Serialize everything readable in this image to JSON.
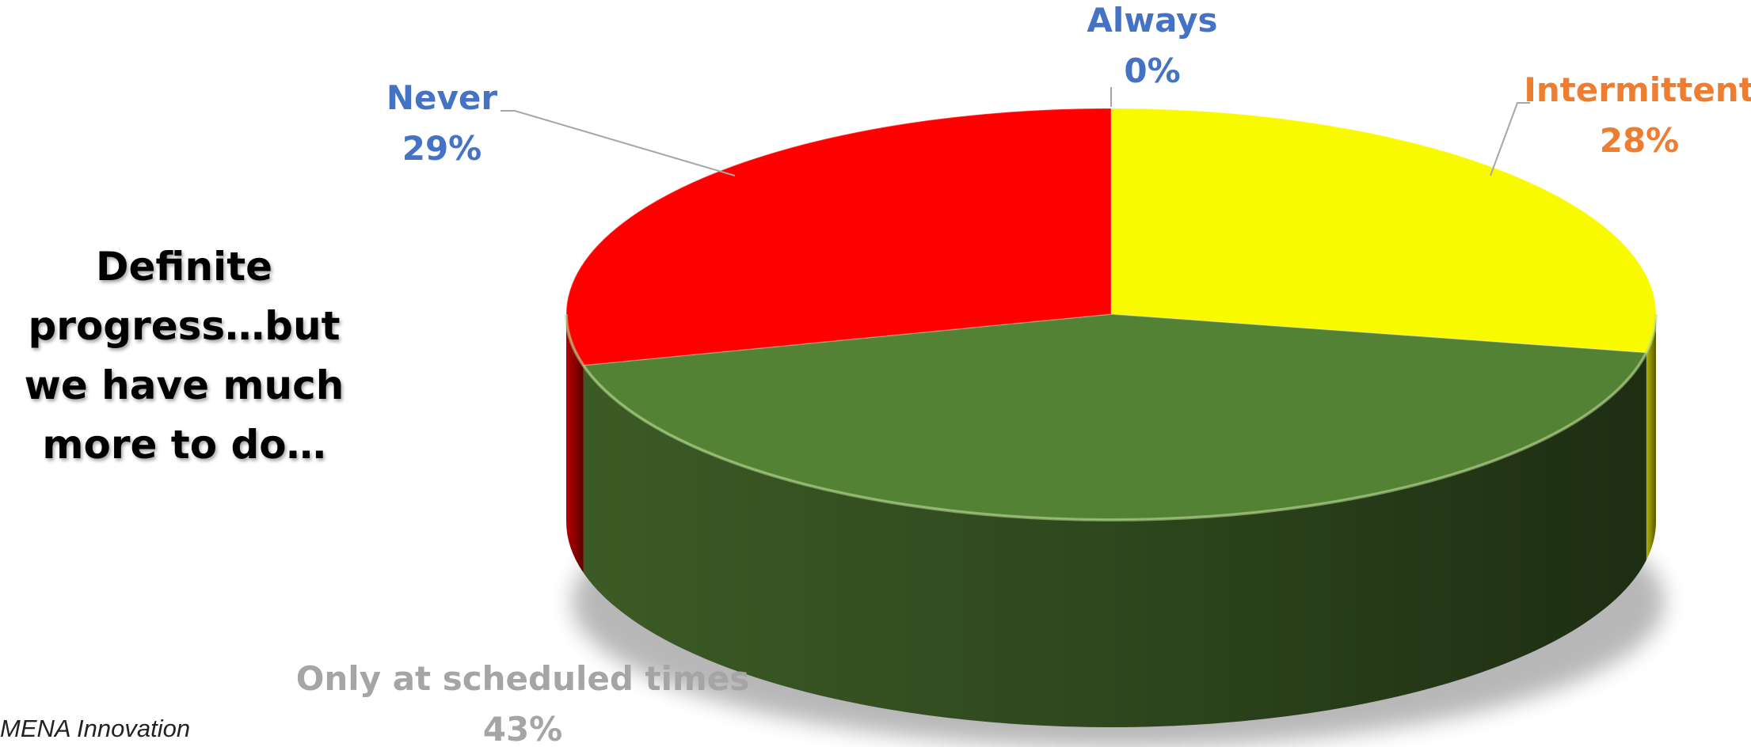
{
  "headline": "Definite progress…but we have much more to do…",
  "footer": "MENA Innovation",
  "chart_data": {
    "type": "pie",
    "style": "3d",
    "title": "",
    "slices": [
      {
        "label": "Always",
        "value": 0,
        "value_label": "0%",
        "color": "#4472C4",
        "label_color": "#4472C4"
      },
      {
        "label": "Intermittent",
        "value": 28,
        "value_label": "28%",
        "color": "#F9F900",
        "label_color": "#ED7D31"
      },
      {
        "label": "Only at scheduled times",
        "value": 43,
        "value_label": "43%",
        "color": "#548235",
        "label_color": "#A5A5A5"
      },
      {
        "label": "Never",
        "value": 29,
        "value_label": "29%",
        "color": "#FF0000",
        "label_color": "#4472C4"
      }
    ],
    "start_angle": "12 o'clock",
    "direction": "clockwise",
    "legend": "none"
  }
}
